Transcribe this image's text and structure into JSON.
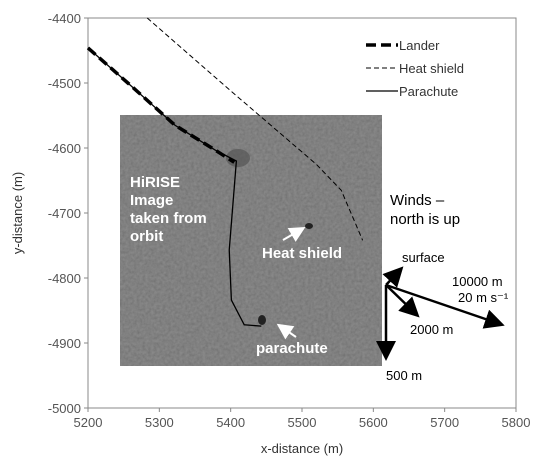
{
  "chart_data": {
    "type": "line",
    "x_label": "x-distance (m)",
    "y_label": "y-distance (m)",
    "xlim": [
      5200,
      5800
    ],
    "xticks": [
      5200,
      5300,
      5400,
      5500,
      5600,
      5700,
      5800
    ],
    "ylim": [
      -5000,
      -4400
    ],
    "yticks": [
      -4400,
      -4500,
      -4600,
      -4700,
      -4800,
      -4900,
      -5000
    ],
    "legend": "top-right",
    "series": [
      {
        "name": "Lander",
        "color": "#000000",
        "style": "thick-dashed",
        "x": [
          5200,
          5259,
          5322,
          5378,
          5405
        ],
        "values": [
          -4446,
          -4503,
          -4565,
          -4603,
          -4622
        ]
      },
      {
        "name": "Heat shield",
        "color": "#000000",
        "style": "dashed",
        "x": [
          5283,
          5400,
          5520,
          5555,
          5585
        ],
        "values": [
          -4400,
          -4512,
          -4625,
          -4665,
          -4742
        ]
      },
      {
        "name": "Parachute",
        "color": "#000000",
        "style": "solid",
        "x": [
          5200,
          5259,
          5322,
          5378,
          5408,
          5398,
          5401,
          5419,
          5443
        ],
        "values": [
          -4446,
          -4503,
          -4565,
          -4603,
          -4620,
          -4757,
          -4834,
          -4872,
          -4874
        ]
      }
    ],
    "annotations": {
      "image_label": [
        "HiRISE",
        "Image",
        "taken from",
        "orbit"
      ],
      "heat_shield": "Heat shield",
      "parachute": "parachute",
      "winds": [
        "Winds –",
        "north is up"
      ],
      "wind_surface": "surface",
      "wind_10000": "10000 m",
      "wind_speed": "20 m s⁻¹",
      "wind_2000": "2000 m",
      "wind_500": "500 m"
    }
  }
}
